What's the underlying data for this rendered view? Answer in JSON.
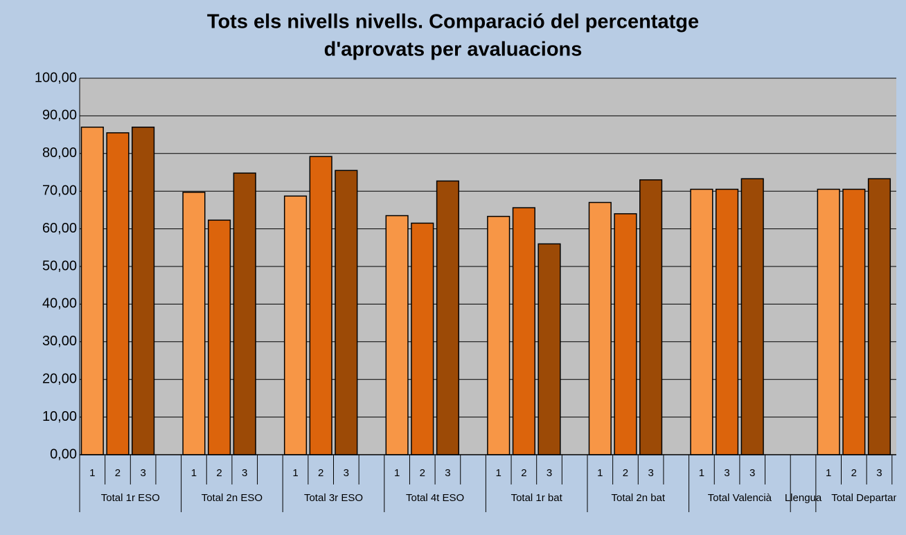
{
  "chart_data": {
    "type": "bar",
    "title": [
      "Tots els nivells nivells. Comparació del percentatge",
      "d'aprovats per avaluacions"
    ],
    "colors": [
      "#f79646",
      "#dc640c",
      "#9c4a06"
    ],
    "ylim": [
      0,
      100
    ],
    "yticks": [
      {
        "value": 0,
        "label": "0,00"
      },
      {
        "value": 10,
        "label": "10,00"
      },
      {
        "value": 20,
        "label": "20,00"
      },
      {
        "value": 30,
        "label": "30,00"
      },
      {
        "value": 40,
        "label": "40,00"
      },
      {
        "value": 50,
        "label": "50,00"
      },
      {
        "value": 60,
        "label": "60,00"
      },
      {
        "value": 70,
        "label": "70,00"
      },
      {
        "value": 80,
        "label": "80,00"
      },
      {
        "value": 90,
        "label": "90,00"
      },
      {
        "value": 100,
        "label": "100,00"
      }
    ],
    "grid": true,
    "groups": [
      {
        "label": "Total 1r ESO",
        "categories": [
          "1",
          "2",
          "3"
        ],
        "values": [
          87,
          85.5,
          87
        ]
      },
      {
        "label": "Total 2n ESO",
        "categories": [
          "1",
          "2",
          "3"
        ],
        "values": [
          69.7,
          62.3,
          74.8
        ]
      },
      {
        "label": "Total 3r ESO",
        "categories": [
          "1",
          "2",
          "3"
        ],
        "values": [
          68.7,
          79.2,
          75.5
        ]
      },
      {
        "label": "Total 4t ESO",
        "categories": [
          "1",
          "2",
          "3"
        ],
        "values": [
          63.5,
          61.5,
          72.7
        ]
      },
      {
        "label": "Total 1r bat",
        "categories": [
          "1",
          "2",
          "3"
        ],
        "values": [
          63.3,
          65.6,
          56
        ]
      },
      {
        "label": "Total 2n bat",
        "categories": [
          "1",
          "2",
          "3"
        ],
        "values": [
          67,
          64,
          73
        ]
      },
      {
        "label": "Total Valencià",
        "categories": [
          "1",
          "3",
          "3"
        ],
        "values": [
          70.5,
          70.5,
          73.3
        ]
      },
      {
        "label": "Llengua",
        "categories": [],
        "values": []
      },
      {
        "label": "Total Departam",
        "categories": [
          "1",
          "2",
          "3"
        ],
        "values": [
          70.5,
          70.5,
          73.3
        ]
      }
    ]
  }
}
